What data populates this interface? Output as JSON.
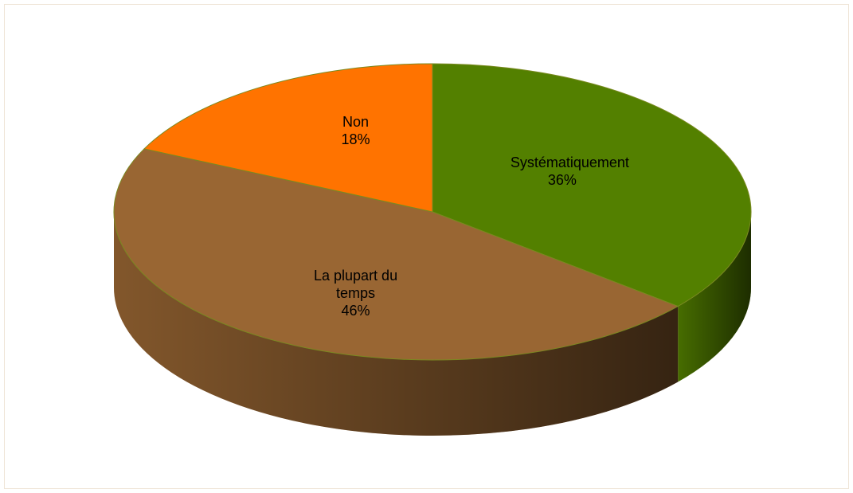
{
  "chart_data": {
    "type": "pie",
    "categories": [
      "Systématiquement",
      "La plupart du temps",
      "Non"
    ],
    "values": [
      36,
      46,
      18
    ],
    "value_labels": [
      "36%",
      "46%",
      "18%"
    ],
    "colors": [
      "#538000",
      "#996633",
      "#ff7300"
    ]
  }
}
